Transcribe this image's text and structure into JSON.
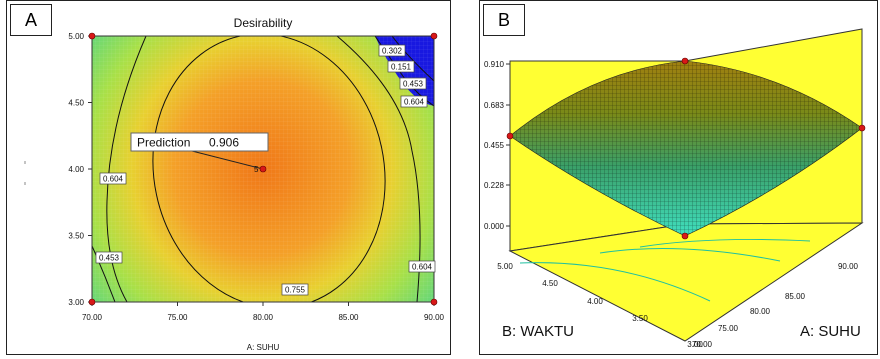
{
  "chart_data": [
    {
      "panel": "A",
      "type": "contour",
      "title": "Desirability",
      "xlabel": "A: SUHU",
      "ylabel": "",
      "xlim": [
        70,
        90
      ],
      "ylim": [
        3,
        5
      ],
      "x_ticks": [
        "70.00",
        "75.00",
        "80.00",
        "85.00",
        "90.00"
      ],
      "y_ticks": [
        "3.00",
        "3.50",
        "4.00",
        "4.50",
        "5.00"
      ],
      "optimum": {
        "x": 80,
        "y": 4,
        "value": 0.906
      },
      "prediction_label": "Prediction",
      "prediction_value": "0.906",
      "center_marker_label": "5",
      "contour_labels": [
        "0.302",
        "0.151",
        "0.453",
        "0.604",
        "0.604",
        "0.453",
        "0.755",
        "0.604"
      ],
      "design_points": [
        [
          70,
          3
        ],
        [
          90,
          3
        ],
        [
          70,
          5
        ],
        [
          90,
          5
        ],
        [
          80,
          4
        ]
      ]
    },
    {
      "panel": "B",
      "type": "surface3d",
      "xlabel": "A: SUHU",
      "ylabel": "B: WAKTU",
      "zlim": [
        0,
        0.91
      ],
      "z_ticks": [
        "0.000",
        "0.228",
        "0.455",
        "0.683",
        "0.910"
      ],
      "x_ticks": [
        "70.00",
        "75.00",
        "80.00",
        "85.00",
        "90.00"
      ],
      "y_ticks": [
        "3.00",
        "3.50",
        "4.00",
        "4.50",
        "5.00"
      ],
      "peak": {
        "x": 80,
        "y": 4,
        "z": 0.906
      },
      "corner_points": [
        [
          70,
          5,
          0.5
        ],
        [
          90,
          3,
          0.5
        ],
        [
          90,
          5,
          0.0
        ],
        [
          70,
          3,
          0.9
        ]
      ]
    }
  ],
  "panels": {
    "a_letter": "A",
    "b_letter": "B"
  },
  "colors": {
    "center": "#f07818",
    "mid": "#f0c030",
    "outer": "#a8e048",
    "edge": "#30d0a0",
    "low": "#1818e0",
    "wall": "#ffff33",
    "surface_top": "#b89a10",
    "surface_bottom": "#40e0c0"
  }
}
